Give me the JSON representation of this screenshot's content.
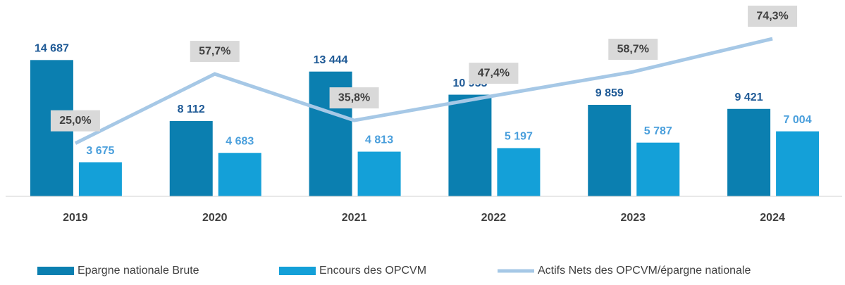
{
  "chart_data": {
    "type": "bar_line",
    "categories": [
      "2019",
      "2020",
      "2021",
      "2022",
      "2023",
      "2024"
    ],
    "series": [
      {
        "name": "Epargne nationale Brute",
        "color": "#0b7fb0",
        "label_color": "#1f5a96",
        "values": [
          14687,
          8112,
          13444,
          10953,
          9859,
          9421
        ],
        "value_labels": [
          "14 687",
          "8 112",
          "13 444",
          "10 953",
          "9 859",
          "9 421"
        ]
      },
      {
        "name": "Encours des OPCVM",
        "color": "#14a0d8",
        "label_color": "#4a9fdc",
        "values": [
          3675,
          4683,
          4813,
          5197,
          5787,
          7004
        ],
        "value_labels": [
          "3 675",
          "4 683",
          "4 813",
          "5 197",
          "5 787",
          "7 004"
        ]
      },
      {
        "name": "Actifs Nets des OPCVM/épargne nationale",
        "color": "#a6c8e6",
        "axis": "y2",
        "type": "line",
        "values": [
          25.0,
          57.7,
          35.8,
          47.4,
          58.7,
          74.3
        ],
        "value_labels": [
          "25,0%",
          "57,7%",
          "35,8%",
          "47,4%",
          "58,7%",
          "74,3%"
        ]
      }
    ],
    "ylim": [
      0,
      16000
    ],
    "y2lim": [
      0,
      70
    ],
    "legend": "bottom",
    "grid": false
  }
}
